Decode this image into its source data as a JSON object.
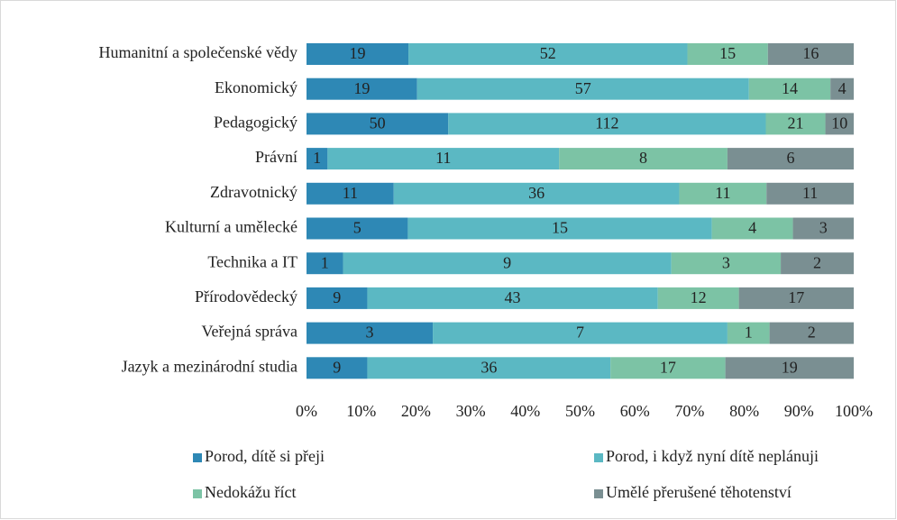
{
  "chart_data": {
    "type": "bar",
    "orientation": "horizontal",
    "stacking": "percent",
    "categories": [
      "Humanitní a společenské vědy",
      "Ekonomický",
      "Pedagogický",
      "Právní",
      "Zdravotnický",
      "Kulturní a umělecké",
      "Technika a IT",
      "Přírodovědecký",
      "Veřejná správa",
      "Jazyk a mezinárodní studia"
    ],
    "series": [
      {
        "name": "Porod, dítě si přeji",
        "color": "#2e88b5",
        "values": [
          19,
          19,
          50,
          1,
          11,
          5,
          1,
          9,
          3,
          9
        ]
      },
      {
        "name": "Porod, i když nyní dítě neplánuji",
        "color": "#5bb8c3",
        "values": [
          52,
          57,
          112,
          11,
          36,
          15,
          9,
          43,
          7,
          36
        ]
      },
      {
        "name": "Nedokážu říct",
        "color": "#7cc3a5",
        "values": [
          15,
          14,
          21,
          8,
          11,
          4,
          3,
          12,
          1,
          17
        ]
      },
      {
        "name": "Umělé přerušené těhotenství",
        "color": "#7a8f92",
        "values": [
          16,
          4,
          10,
          6,
          11,
          3,
          2,
          17,
          2,
          19
        ]
      }
    ],
    "xlim": [
      0,
      100
    ],
    "xticks": [
      {
        "value": 0,
        "label": "0%"
      },
      {
        "value": 10,
        "label": "10%"
      },
      {
        "value": 20,
        "label": "20%"
      },
      {
        "value": 30,
        "label": "30%"
      },
      {
        "value": 40,
        "label": "40%"
      },
      {
        "value": 50,
        "label": "50%"
      },
      {
        "value": 60,
        "label": "60%"
      },
      {
        "value": 70,
        "label": "70%"
      },
      {
        "value": 80,
        "label": "80%"
      },
      {
        "value": 90,
        "label": "90%"
      },
      {
        "value": 100,
        "label": "100%"
      }
    ],
    "legend": "bottom"
  }
}
